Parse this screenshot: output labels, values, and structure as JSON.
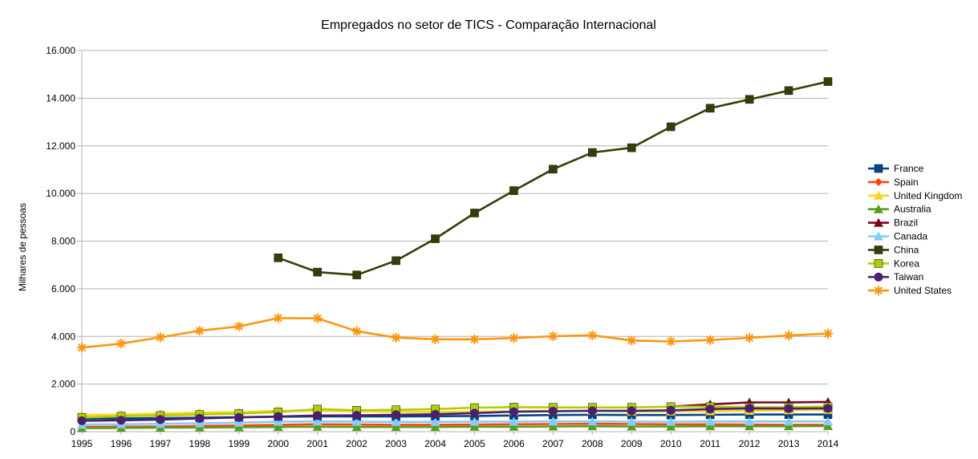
{
  "chart_data": {
    "type": "line",
    "title": "Empregados no setor de TICS - Comparação Internacional",
    "ylabel": "Milhares de pessoas",
    "xlabel": "",
    "ylim": [
      0,
      16000
    ],
    "yticks": [
      0,
      2000,
      4000,
      6000,
      8000,
      10000,
      12000,
      14000,
      16000
    ],
    "ytick_labels": [
      "0",
      "2.000",
      "4.000",
      "6.000",
      "8.000",
      "10.000",
      "12.000",
      "14.000",
      "16.000"
    ],
    "x": [
      "1995",
      "1996",
      "1997",
      "1998",
      "1999",
      "2000",
      "2001",
      "2002",
      "2003",
      "2004",
      "2005",
      "2006",
      "2007",
      "2008",
      "2009",
      "2010",
      "2011",
      "2012",
      "2013",
      "2014"
    ],
    "grid": "horizontal",
    "legend_position": "right",
    "series": [
      {
        "name": "France",
        "color": "#004586",
        "marker": "square",
        "values": [
          560,
          560,
          570,
          590,
          610,
          630,
          640,
          640,
          640,
          650,
          660,
          680,
          700,
          710,
          700,
          700,
          710,
          720,
          720,
          720
        ]
      },
      {
        "name": "Spain",
        "color": "#ff420e",
        "marker": "diamond",
        "values": [
          200,
          210,
          220,
          240,
          260,
          290,
          310,
          300,
          290,
          290,
          300,
          310,
          320,
          330,
          320,
          310,
          310,
          300,
          290,
          290
        ]
      },
      {
        "name": "United Kingdom",
        "color": "#ffd320",
        "marker": "triangle",
        "values": [
          700,
          720,
          760,
          800,
          820,
          880,
          880,
          860,
          840,
          830,
          840,
          860,
          880,
          880,
          850,
          850,
          860,
          880,
          900,
          920
        ]
      },
      {
        "name": "Australia",
        "color": "#579d1c",
        "marker": "triangle",
        "values": [
          150,
          160,
          170,
          180,
          190,
          200,
          210,
          200,
          200,
          200,
          210,
          210,
          220,
          230,
          220,
          220,
          230,
          230,
          230,
          240
        ]
      },
      {
        "name": "Brazil",
        "color": "#7e0021",
        "marker": "triangle",
        "values": [
          null,
          null,
          null,
          null,
          null,
          null,
          null,
          null,
          null,
          null,
          null,
          null,
          null,
          null,
          null,
          1050,
          1150,
          1230,
          1230,
          1250
        ]
      },
      {
        "name": "Canada",
        "color": "#83caff",
        "marker": "triangle",
        "values": [
          300,
          310,
          330,
          350,
          380,
          420,
          430,
          420,
          410,
          410,
          420,
          420,
          430,
          430,
          420,
          420,
          430,
          430,
          430,
          430
        ]
      },
      {
        "name": "China",
        "color": "#314004",
        "marker": "square",
        "values": [
          null,
          null,
          null,
          null,
          null,
          7300,
          6700,
          6580,
          7180,
          8100,
          9180,
          10120,
          11020,
          11720,
          11920,
          12800,
          13580,
          13950,
          14320,
          14700
        ]
      },
      {
        "name": "Korea",
        "color": "#aecf00",
        "marker": "square",
        "values": [
          600,
          650,
          680,
          720,
          760,
          830,
          950,
          900,
          920,
          950,
          1010,
          1030,
          1020,
          1020,
          1020,
          1050,
          1050,
          1030,
          1030,
          1050
        ]
      },
      {
        "name": "Taiwan",
        "color": "#4b1f6f",
        "marker": "circle",
        "values": [
          460,
          480,
          510,
          560,
          600,
          640,
          680,
          690,
          710,
          730,
          780,
          840,
          860,
          880,
          880,
          900,
          950,
          980,
          970,
          980
        ]
      },
      {
        "name": "United States",
        "color": "#ff950e",
        "marker": "asterisk",
        "values": [
          3530,
          3700,
          3960,
          4240,
          4420,
          4770,
          4760,
          4220,
          3950,
          3880,
          3880,
          3930,
          4010,
          4050,
          3830,
          3790,
          3850,
          3940,
          4040,
          4120
        ]
      }
    ]
  }
}
